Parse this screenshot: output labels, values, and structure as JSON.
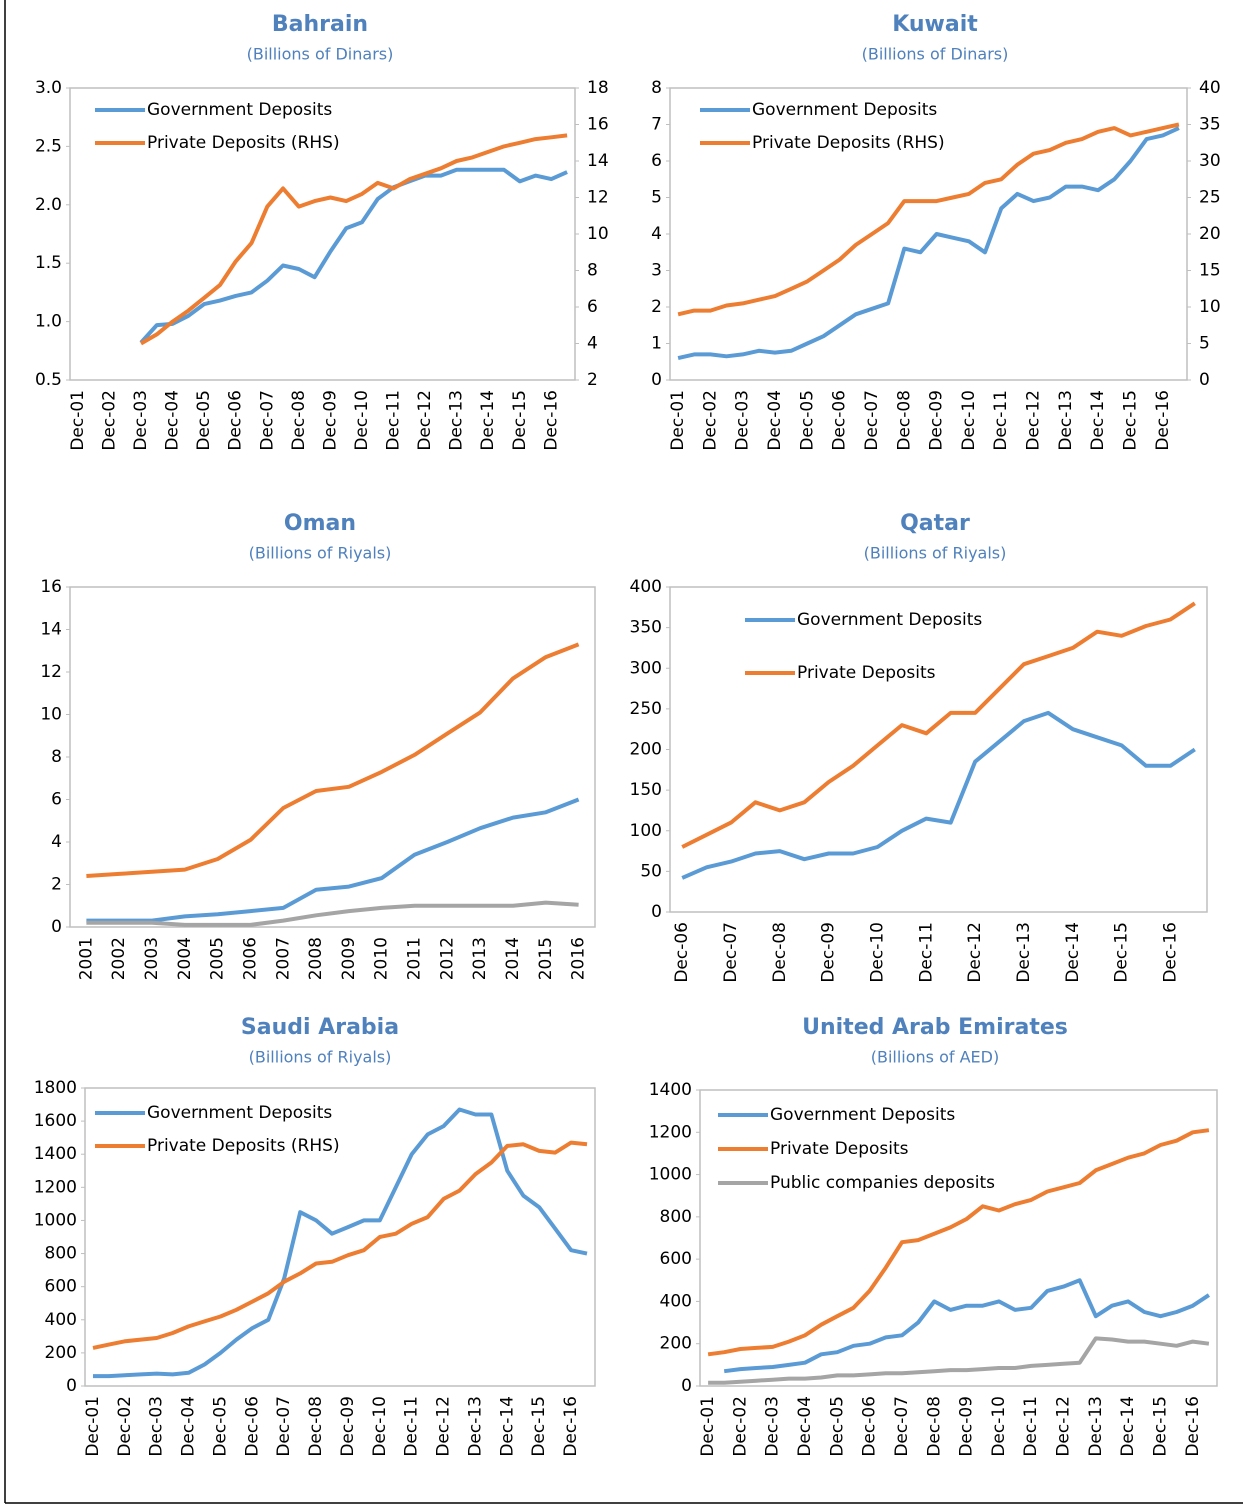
{
  "chart_data": [
    {
      "type": "line",
      "title": "Bahrain",
      "subtitle": "(Billions of Dinars)",
      "categories": [
        "Dec-01",
        null,
        "Dec-02",
        null,
        "Dec-03",
        null,
        "Dec-04",
        null,
        "Dec-05",
        null,
        "Dec-06",
        null,
        "Dec-07",
        null,
        "Dec-08",
        null,
        "Dec-09",
        null,
        "Dec-10",
        null,
        "Dec-11",
        null,
        "Dec-12",
        null,
        "Dec-13",
        null,
        "Dec-14",
        null,
        "Dec-15",
        null,
        "Dec-16",
        null
      ],
      "series": [
        {
          "name": "Government Deposits",
          "color": "#5b9bd5",
          "values": [
            null,
            null,
            null,
            null,
            0.82,
            0.97,
            0.98,
            1.05,
            1.15,
            1.18,
            1.22,
            1.25,
            1.35,
            1.48,
            1.45,
            1.38,
            1.6,
            1.8,
            1.85,
            2.05,
            2.15,
            2.2,
            2.25,
            2.25,
            2.3,
            2.3,
            2.3,
            2.3,
            2.2,
            2.25,
            2.22,
            2.28
          ]
        },
        {
          "name": "Private Deposits (RHS)",
          "color": "#ed7d31",
          "axis": "y2",
          "values": [
            null,
            null,
            null,
            null,
            4.0,
            4.5,
            5.2,
            5.8,
            6.5,
            7.2,
            8.5,
            9.5,
            11.5,
            12.5,
            11.5,
            11.8,
            12,
            11.8,
            12.2,
            12.8,
            12.5,
            13,
            13.3,
            13.6,
            14,
            14.2,
            14.5,
            14.8,
            15,
            15.2,
            15.3,
            15.4
          ]
        }
      ],
      "ylim": [
        0.5,
        3.0
      ],
      "yticks": [
        0.5,
        {
          "value": 1,
          "label": "1.0"
        },
        1.5,
        {
          "value": 2,
          "label": "2.0"
        },
        2.5,
        {
          "value": 3,
          "label": "3.0"
        }
      ],
      "y2lim": [
        2,
        18
      ],
      "y2ticks": [
        2,
        4,
        6,
        8,
        10,
        12,
        14,
        16,
        18
      ],
      "legend": "upper left"
    },
    {
      "type": "line",
      "title": "Kuwait",
      "subtitle": "(Billions of Dinars)",
      "categories": [
        "Dec-01",
        null,
        "Dec-02",
        null,
        "Dec-03",
        null,
        "Dec-04",
        null,
        "Dec-05",
        null,
        "Dec-06",
        null,
        "Dec-07",
        null,
        "Dec-08",
        null,
        "Dec-09",
        null,
        "Dec-10",
        null,
        "Dec-11",
        null,
        "Dec-12",
        null,
        "Dec-13",
        null,
        "Dec-14",
        null,
        "Dec-15",
        null,
        "Dec-16",
        null
      ],
      "series": [
        {
          "name": "Government Deposits",
          "color": "#5b9bd5",
          "values": [
            0.6,
            0.7,
            0.7,
            0.65,
            0.7,
            0.8,
            0.75,
            0.8,
            1.0,
            1.2,
            1.5,
            1.8,
            1.95,
            2.1,
            3.6,
            3.5,
            4.0,
            3.9,
            3.8,
            3.5,
            4.7,
            5.1,
            4.9,
            5.0,
            5.3,
            5.3,
            5.2,
            5.5,
            6.0,
            6.6,
            6.7,
            6.9
          ]
        },
        {
          "name": "Private Deposits (RHS)",
          "color": "#ed7d31",
          "axis": "y2",
          "values": [
            9,
            9.5,
            9.5,
            10.2,
            10.5,
            11,
            11.5,
            12.5,
            13.5,
            15,
            16.5,
            18.5,
            20,
            21.5,
            24.5,
            24.5,
            24.5,
            25,
            25.5,
            27,
            27.5,
            29.5,
            31,
            31.5,
            32.5,
            33,
            34,
            34.5,
            33.5,
            34,
            34.5,
            35
          ]
        }
      ],
      "ylim": [
        0,
        8
      ],
      "yticks": [
        0,
        1,
        2,
        3,
        4,
        5,
        6,
        7,
        8
      ],
      "y2lim": [
        0,
        40
      ],
      "y2ticks": [
        0,
        5,
        10,
        15,
        20,
        25,
        30,
        35,
        40
      ],
      "legend": "upper left"
    },
    {
      "type": "line",
      "title": "Oman",
      "subtitle": "(Billions of Riyals)",
      "categories": [
        "2001",
        "2002",
        "2003",
        "2004",
        "2005",
        "2006",
        "2007",
        "2008",
        "2009",
        "2010",
        "2011",
        "2012",
        "2013",
        "2014",
        "2015",
        "2016"
      ],
      "series": [
        {
          "color": "#ed7d31",
          "values": [
            2.4,
            2.5,
            2.6,
            2.7,
            3.2,
            4.1,
            5.6,
            6.4,
            6.6,
            7.3,
            8.1,
            9.1,
            10.1,
            11.7,
            12.7,
            13.3
          ]
        },
        {
          "color": "#5b9bd5",
          "values": [
            0.3,
            0.3,
            0.3,
            0.5,
            0.6,
            0.75,
            0.9,
            1.75,
            1.9,
            2.3,
            3.4,
            4.0,
            4.65,
            5.15,
            5.4,
            6.0
          ]
        },
        {
          "color": "#a5a5a5",
          "values": [
            0.2,
            0.2,
            0.2,
            0.1,
            0.1,
            0.1,
            0.3,
            0.55,
            0.75,
            0.9,
            1.0,
            1.0,
            1.0,
            1.0,
            1.15,
            1.05
          ]
        }
      ],
      "ylim": [
        0,
        16
      ],
      "yticks": [
        0,
        2,
        4,
        6,
        8,
        10,
        12,
        14,
        16
      ]
    },
    {
      "type": "line",
      "title": "Qatar",
      "subtitle": "(Billions of Riyals)",
      "categories": [
        "Dec-06",
        null,
        "Dec-07",
        null,
        "Dec-08",
        null,
        "Dec-09",
        null,
        "Dec-10",
        null,
        "Dec-11",
        null,
        "Dec-12",
        null,
        "Dec-13",
        null,
        "Dec-14",
        null,
        "Dec-15",
        null,
        "Dec-16",
        null
      ],
      "series": [
        {
          "name": "Government Deposits",
          "color": "#5b9bd5",
          "values": [
            42,
            55,
            62,
            72,
            75,
            65,
            72,
            72,
            80,
            100,
            115,
            110,
            185,
            210,
            235,
            245,
            225,
            215,
            205,
            180,
            180,
            200
          ]
        },
        {
          "name": "Private Deposits",
          "color": "#ed7d31",
          "values": [
            80,
            95,
            110,
            135,
            125,
            135,
            160,
            180,
            205,
            230,
            220,
            245,
            245,
            275,
            305,
            315,
            325,
            345,
            340,
            352,
            360,
            380
          ]
        }
      ],
      "ylim": [
        0,
        400
      ],
      "yticks": [
        0,
        50,
        100,
        150,
        200,
        250,
        300,
        350,
        400
      ],
      "legend": "upper left"
    },
    {
      "type": "line",
      "title": "Saudi Arabia",
      "subtitle": "(Billions of Riyals)",
      "categories": [
        "Dec-01",
        null,
        "Dec-02",
        null,
        "Dec-03",
        null,
        "Dec-04",
        null,
        "Dec-05",
        null,
        "Dec-06",
        null,
        "Dec-07",
        null,
        "Dec-08",
        null,
        "Dec-09",
        null,
        "Dec-10",
        null,
        "Dec-11",
        null,
        "Dec-12",
        null,
        "Dec-13",
        null,
        "Dec-14",
        null,
        "Dec-15",
        null,
        "Dec-16",
        null
      ],
      "series": [
        {
          "name": "Government Deposits",
          "color": "#5b9bd5",
          "values": [
            60,
            60,
            65,
            70,
            75,
            70,
            80,
            130,
            200,
            280,
            350,
            400,
            650,
            1050,
            1000,
            920,
            960,
            1000,
            1000,
            1200,
            1400,
            1520,
            1570,
            1670,
            1640,
            1640,
            1300,
            1150,
            1080,
            950,
            820,
            800
          ]
        },
        {
          "name": "Private Deposits (RHS)",
          "color": "#ed7d31",
          "values": [
            230,
            250,
            270,
            280,
            290,
            320,
            360,
            390,
            420,
            460,
            510,
            560,
            630,
            680,
            740,
            750,
            790,
            820,
            900,
            920,
            980,
            1020,
            1130,
            1180,
            1280,
            1350,
            1450,
            1460,
            1420,
            1410,
            1470,
            1460
          ]
        }
      ],
      "ylim": [
        0,
        1800
      ],
      "yticks": [
        0,
        200,
        400,
        600,
        800,
        1000,
        1200,
        1400,
        1600,
        1800
      ],
      "legend": "upper left"
    },
    {
      "type": "line",
      "title": "United Arab Emirates",
      "subtitle": "(Billions of AED)",
      "categories": [
        "Dec-01",
        null,
        "Dec-02",
        null,
        "Dec-03",
        null,
        "Dec-04",
        null,
        "Dec-05",
        null,
        "Dec-06",
        null,
        "Dec-07",
        null,
        "Dec-08",
        null,
        "Dec-09",
        null,
        "Dec-10",
        null,
        "Dec-11",
        null,
        "Dec-12",
        null,
        "Dec-13",
        null,
        "Dec-14",
        null,
        "Dec-15",
        null,
        "Dec-16",
        null
      ],
      "series": [
        {
          "name": "Government Deposits",
          "color": "#5b9bd5",
          "values": [
            null,
            70,
            80,
            85,
            90,
            100,
            110,
            150,
            160,
            190,
            200,
            230,
            240,
            300,
            400,
            360,
            380,
            380,
            400,
            360,
            370,
            450,
            470,
            500,
            330,
            380,
            400,
            350,
            330,
            350,
            380,
            430
          ]
        },
        {
          "name": "Private Deposits",
          "color": "#ed7d31",
          "values": [
            150,
            160,
            175,
            180,
            185,
            210,
            240,
            290,
            330,
            370,
            450,
            560,
            680,
            690,
            720,
            750,
            790,
            850,
            830,
            860,
            880,
            920,
            940,
            960,
            1020,
            1050,
            1080,
            1100,
            1140,
            1160,
            1200,
            1210
          ]
        },
        {
          "name": "Public companies deposits",
          "color": "#a5a5a5",
          "values": [
            15,
            15,
            20,
            25,
            30,
            35,
            35,
            40,
            50,
            50,
            55,
            60,
            60,
            65,
            70,
            75,
            75,
            80,
            85,
            85,
            95,
            100,
            105,
            110,
            225,
            220,
            210,
            210,
            200,
            190,
            210,
            200
          ]
        }
      ],
      "ylim": [
        0,
        1400
      ],
      "yticks": [
        0,
        200,
        400,
        600,
        800,
        1000,
        1200,
        1400
      ],
      "legend": "upper left"
    }
  ]
}
